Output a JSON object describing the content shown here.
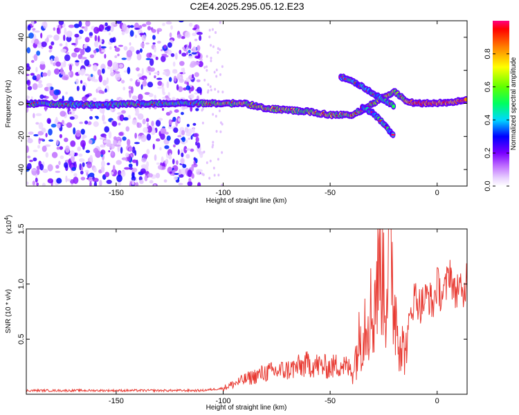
{
  "chart_data": [
    {
      "type": "heatmap",
      "title": "C2E4.2025.295.05.12.E23",
      "xlabel": "Height of straight line (km)",
      "ylabel": "Frequency (Hz)",
      "xlim": [
        -192,
        14
      ],
      "ylim": [
        -50,
        50
      ],
      "xticks": [
        -150,
        -100,
        -50,
        0
      ],
      "yticks": [
        -40,
        -20,
        0,
        20,
        40
      ],
      "colorbar": {
        "label": "Normalized spectral amplitude",
        "range": [
          0,
          1
        ],
        "ticks": [
          0.0,
          0.2,
          0.4,
          0.6,
          0.8
        ]
      },
      "tracks": [
        {
          "x": [
            -192,
            -160,
            -130,
            -110,
            -100,
            -90,
            -80,
            -70,
            -60,
            -50,
            -40
          ],
          "y": [
            0,
            -1,
            0,
            0,
            0,
            0,
            -3,
            -4,
            -5,
            -7,
            -7
          ]
        },
        {
          "x": [
            -40,
            -35,
            -30,
            -25,
            -20,
            -15,
            -10,
            0,
            14
          ],
          "y": [
            -7,
            -4,
            0,
            4,
            7,
            2,
            0,
            0,
            2
          ]
        },
        {
          "x": [
            -45,
            -40,
            -35,
            -30,
            -25,
            -20
          ],
          "y": [
            16,
            14,
            10,
            6,
            2,
            -2
          ]
        },
        {
          "x": [
            -35,
            -30,
            -25,
            -20
          ],
          "y": [
            -2,
            -6,
            -12,
            -20
          ]
        }
      ]
    },
    {
      "type": "line",
      "title": "",
      "xlabel": "Height of straight line (km)",
      "ylabel": "SNR (10 * v/v)",
      "y_multiplier_label": "(x10",
      "y_multiplier_exp": "4",
      "y_multiplier_close": ")",
      "xlim": [
        -192,
        14
      ],
      "ylim": [
        0,
        1.5
      ],
      "xticks": [
        -150,
        -100,
        -50,
        0
      ],
      "yticks": [
        0.5,
        1.0,
        1.5
      ],
      "ytick_labels": [
        "0.5",
        "1.0",
        "1.5"
      ],
      "series": [
        {
          "color": "#e83a32",
          "x": [
            -192,
            -170,
            -150,
            -130,
            -110,
            -100,
            -90,
            -80,
            -70,
            -60,
            -50,
            -45,
            -40,
            -38,
            -35,
            -32,
            -30,
            -28,
            -26,
            -24,
            -22,
            -20,
            -18,
            -16,
            -14,
            -12,
            -10,
            -8,
            -6,
            -4,
            -2,
            0,
            2,
            4,
            6,
            8,
            10,
            12,
            14
          ],
          "y": [
            0.03,
            0.03,
            0.03,
            0.03,
            0.03,
            0.05,
            0.12,
            0.18,
            0.2,
            0.25,
            0.22,
            0.25,
            0.2,
            0.35,
            0.6,
            0.8,
            0.7,
            1.1,
            1.35,
            0.9,
            1.45,
            0.8,
            0.6,
            0.4,
            0.45,
            0.8,
            0.9,
            0.8,
            0.85,
            0.9,
            0.8,
            1.0,
            0.9,
            0.95,
            1.15,
            0.9,
            1.0,
            0.85,
            1.1
          ]
        }
      ]
    }
  ]
}
